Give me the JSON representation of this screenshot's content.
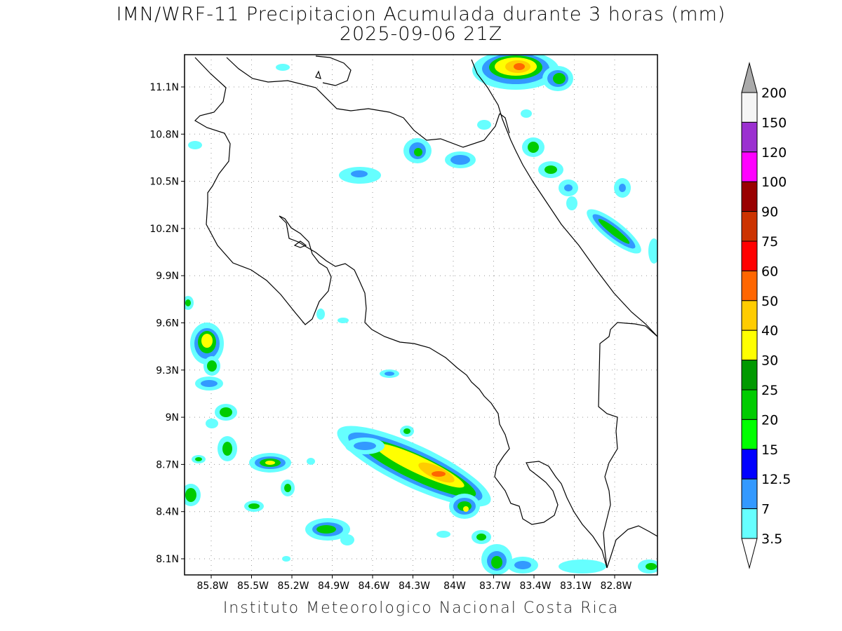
{
  "title_line1": "IMN/WRF-11 Precipitacion Acumulada durante 3 horas (mm)",
  "title_line2": "2025-09-06 21Z",
  "footer": "Instituto Meteorologico Nacional Costa Rica",
  "lat_labels": [
    "11.1N",
    "10.8N",
    "10.5N",
    "10.2N",
    "9.9N",
    "9.6N",
    "9.3N",
    "9N",
    "8.7N",
    "8.4N",
    "8.1N"
  ],
  "lon_labels": [
    "85.8W",
    "85.5W",
    "85.2W",
    "84.9W",
    "84.6W",
    "84.3W",
    "84W",
    "83.7W",
    "83.4W",
    "83.1W",
    "82.8W"
  ],
  "colorbar": {
    "labels": [
      "200",
      "150",
      "120",
      "100",
      "90",
      "75",
      "60",
      "50",
      "40",
      "30",
      "25",
      "20",
      "15",
      "12.5",
      "7",
      "3.5"
    ],
    "colors": [
      "#f5f5f5",
      "#9b30d0",
      "#ff00ff",
      "#990000",
      "#cc3300",
      "#ff0000",
      "#ff6600",
      "#ffcc00",
      "#ffff00",
      "#009900",
      "#00cc00",
      "#00ff00",
      "#0000ff",
      "#3399ff",
      "#66ffff"
    ],
    "over_color": "#aaaaaa"
  }
}
